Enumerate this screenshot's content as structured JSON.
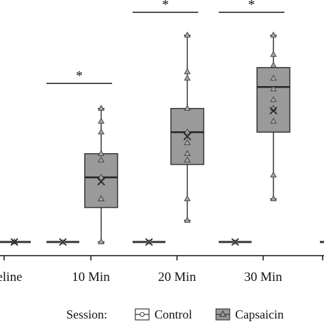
{
  "chart_data": {
    "type": "box",
    "title": "",
    "xlabel": "",
    "ylabel": "",
    "categories": [
      "Baseline",
      "10 Min",
      "20 Min",
      "30 Min"
    ],
    "category_labels": [
      "aseline",
      "10 Min",
      "20 Min",
      "30 Min"
    ],
    "ylim": [
      0,
      10.5
    ],
    "grid": false,
    "legend": {
      "title": "Session:",
      "placement": "bottom",
      "entries": [
        "Control",
        "Capsaicin"
      ]
    },
    "colors": {
      "control": "#ffffff",
      "capsaicin": "#9a9a9a",
      "stroke": "#333333"
    },
    "series": [
      {
        "name": "Control",
        "stats": [
          {
            "min": 0,
            "q1": 0,
            "median": 0,
            "q3": 0,
            "max": 0,
            "mean": 0
          },
          {
            "min": 0,
            "q1": 0,
            "median": 0,
            "q3": 0,
            "max": 0,
            "mean": 0
          },
          {
            "min": 0,
            "q1": 0,
            "median": 0,
            "q3": 0,
            "max": 0,
            "mean": 0
          },
          {
            "min": 0,
            "q1": 0,
            "median": 0,
            "q3": 0,
            "max": 0,
            "mean": 0
          }
        ],
        "points": [
          [
            0
          ],
          [
            0
          ],
          [
            0
          ],
          [
            0
          ]
        ]
      },
      {
        "name": "Capsaicin",
        "stats": [
          {
            "min": 0,
            "q1": 0,
            "median": 0,
            "q3": 0,
            "max": 0,
            "mean": 0
          },
          {
            "min": 0,
            "q1": 1.6,
            "median": 3.0,
            "q3": 4.1,
            "max": 6.2,
            "mean": 2.8
          },
          {
            "min": 1.0,
            "q1": 3.6,
            "median": 5.1,
            "q3": 6.2,
            "max": 9.6,
            "mean": 4.9
          },
          {
            "min": 2.0,
            "q1": 5.1,
            "median": 7.2,
            "q3": 8.1,
            "max": 9.6,
            "mean": 6.1
          }
        ],
        "points": [
          [
            0
          ],
          [
            0,
            2.0,
            2.0,
            3.0,
            3.8,
            4.1,
            5.1,
            5.6,
            6.2
          ],
          [
            1.0,
            2.0,
            3.8,
            4.1,
            4.6,
            5.1,
            6.2,
            7.6,
            7.9,
            9.6
          ],
          [
            2.0,
            3.1,
            5.6,
            6.2,
            6.6,
            7.1,
            7.6,
            8.2,
            8.7,
            9.6
          ]
        ]
      }
    ],
    "significance": [
      {
        "category": "10 Min",
        "label": "*"
      },
      {
        "category": "20 Min",
        "label": "*"
      },
      {
        "category": "30 Min",
        "label": "*"
      }
    ]
  }
}
